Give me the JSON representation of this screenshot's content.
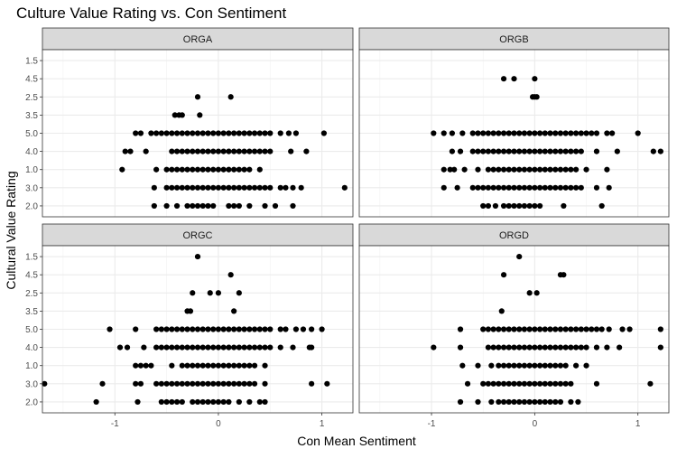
{
  "chart_data": {
    "type": "scatter",
    "title": "Culture Value Rating vs. Con Sentiment",
    "xlabel": "Con Mean Sentiment",
    "ylabel": "Cultural Value Rating",
    "xlim": [
      -1.7,
      1.3
    ],
    "x_ticks": [
      -1,
      0,
      1
    ],
    "y_categories": [
      "1.5",
      "4.5",
      "2.5",
      "3.5",
      "5.0",
      "4.0",
      "1.0",
      "3.0",
      "2.0"
    ],
    "grid": true,
    "point_color": "#000000",
    "strip_color": "#d9d9d9",
    "panels": [
      {
        "name": "ORGA",
        "points": {
          "2.5": [
            -0.2,
            0.12
          ],
          "3.5": [
            -0.42,
            -0.38,
            -0.35,
            -0.18
          ],
          "5.0": [
            -0.8,
            -0.75,
            -0.65,
            -0.6,
            -0.55,
            -0.5,
            -0.45,
            -0.4,
            -0.35,
            -0.3,
            -0.25,
            -0.2,
            -0.15,
            -0.1,
            -0.05,
            0.0,
            0.05,
            0.1,
            0.15,
            0.2,
            0.25,
            0.3,
            0.35,
            0.4,
            0.45,
            0.5,
            0.6,
            0.68,
            0.75,
            1.02
          ],
          "4.0": [
            -0.9,
            -0.85,
            -0.7,
            -0.45,
            -0.4,
            -0.35,
            -0.3,
            -0.25,
            -0.2,
            -0.15,
            -0.1,
            -0.05,
            0.0,
            0.05,
            0.1,
            0.15,
            0.2,
            0.25,
            0.3,
            0.35,
            0.4,
            0.45,
            0.5,
            0.7,
            0.85
          ],
          "1.0": [
            -0.93,
            -0.6,
            -0.5,
            -0.45,
            -0.4,
            -0.35,
            -0.3,
            -0.25,
            -0.2,
            -0.15,
            -0.1,
            -0.05,
            0.0,
            0.05,
            0.1,
            0.15,
            0.2,
            0.25,
            0.3,
            0.4
          ],
          "3.0": [
            -0.62,
            -0.5,
            -0.45,
            -0.4,
            -0.35,
            -0.3,
            -0.25,
            -0.2,
            -0.15,
            -0.1,
            -0.05,
            0.0,
            0.05,
            0.1,
            0.15,
            0.2,
            0.25,
            0.3,
            0.35,
            0.4,
            0.45,
            0.5,
            0.6,
            0.65,
            0.72,
            0.8,
            1.22
          ],
          "2.0": [
            -0.62,
            -0.5,
            -0.4,
            -0.3,
            -0.25,
            -0.2,
            -0.15,
            -0.1,
            -0.05,
            0.1,
            0.15,
            0.2,
            0.3,
            0.45,
            0.55,
            0.72
          ]
        }
      },
      {
        "name": "ORGB",
        "points": {
          "4.5": [
            -0.3,
            -0.2,
            0.0
          ],
          "2.5": [
            -0.02,
            0.0,
            0.02
          ],
          "5.0": [
            -0.98,
            -0.88,
            -0.8,
            -0.7,
            -0.6,
            -0.55,
            -0.5,
            -0.45,
            -0.4,
            -0.35,
            -0.3,
            -0.25,
            -0.2,
            -0.15,
            -0.1,
            -0.05,
            0.0,
            0.05,
            0.1,
            0.15,
            0.2,
            0.25,
            0.3,
            0.35,
            0.4,
            0.45,
            0.5,
            0.55,
            0.6,
            0.7,
            0.75,
            1.0
          ],
          "4.0": [
            -0.8,
            -0.72,
            -0.6,
            -0.55,
            -0.5,
            -0.45,
            -0.4,
            -0.35,
            -0.3,
            -0.25,
            -0.2,
            -0.15,
            -0.1,
            -0.05,
            0.0,
            0.05,
            0.1,
            0.15,
            0.2,
            0.25,
            0.3,
            0.35,
            0.4,
            0.45,
            0.6,
            0.8,
            1.15,
            1.22
          ],
          "1.0": [
            -0.88,
            -0.82,
            -0.78,
            -0.68,
            -0.55,
            -0.45,
            -0.4,
            -0.35,
            -0.3,
            -0.25,
            -0.2,
            -0.15,
            -0.1,
            -0.05,
            0.0,
            0.05,
            0.1,
            0.15,
            0.2,
            0.25,
            0.3,
            0.35,
            0.4,
            0.5,
            0.7
          ],
          "3.0": [
            -0.88,
            -0.75,
            -0.6,
            -0.55,
            -0.5,
            -0.45,
            -0.4,
            -0.35,
            -0.3,
            -0.25,
            -0.2,
            -0.15,
            -0.1,
            -0.05,
            0.0,
            0.05,
            0.1,
            0.15,
            0.2,
            0.25,
            0.3,
            0.35,
            0.4,
            0.45,
            0.6,
            0.72
          ],
          "2.0": [
            -0.5,
            -0.45,
            -0.38,
            -0.3,
            -0.25,
            -0.2,
            -0.15,
            -0.1,
            -0.05,
            0.0,
            0.05,
            0.28,
            0.65
          ]
        }
      },
      {
        "name": "ORGC",
        "points": {
          "1.5": [
            -0.2
          ],
          "4.5": [
            0.12
          ],
          "2.5": [
            -0.25,
            -0.08,
            0.0,
            0.2
          ],
          "3.5": [
            -0.3,
            -0.27,
            0.15
          ],
          "5.0": [
            -1.05,
            -0.8,
            -0.6,
            -0.55,
            -0.5,
            -0.45,
            -0.4,
            -0.35,
            -0.3,
            -0.25,
            -0.2,
            -0.15,
            -0.1,
            -0.05,
            0.0,
            0.05,
            0.1,
            0.15,
            0.2,
            0.25,
            0.3,
            0.35,
            0.4,
            0.45,
            0.5,
            0.6,
            0.65,
            0.75,
            0.82,
            0.9,
            1.0
          ],
          "4.0": [
            -0.95,
            -0.88,
            -0.72,
            -0.6,
            -0.55,
            -0.5,
            -0.45,
            -0.4,
            -0.35,
            -0.3,
            -0.25,
            -0.2,
            -0.15,
            -0.1,
            -0.05,
            0.0,
            0.05,
            0.1,
            0.15,
            0.2,
            0.25,
            0.3,
            0.35,
            0.4,
            0.45,
            0.5,
            0.6,
            0.72,
            0.88,
            0.9
          ],
          "1.0": [
            -0.8,
            -0.75,
            -0.7,
            -0.65,
            -0.45,
            -0.35,
            -0.3,
            -0.25,
            -0.2,
            -0.15,
            -0.1,
            -0.05,
            0.0,
            0.05,
            0.1,
            0.15,
            0.2,
            0.25,
            0.3,
            0.35,
            0.45
          ],
          "3.0": [
            -1.68,
            -1.12,
            -0.8,
            -0.75,
            -0.6,
            -0.55,
            -0.5,
            -0.45,
            -0.4,
            -0.35,
            -0.3,
            -0.25,
            -0.2,
            -0.15,
            -0.1,
            -0.05,
            0.0,
            0.05,
            0.1,
            0.15,
            0.2,
            0.25,
            0.3,
            0.35,
            0.45,
            0.9,
            1.05
          ],
          "2.0": [
            -1.18,
            -0.78,
            -0.55,
            -0.5,
            -0.45,
            -0.4,
            -0.35,
            -0.25,
            -0.2,
            -0.15,
            -0.1,
            -0.05,
            0.0,
            0.05,
            0.1,
            0.2,
            0.3,
            0.4,
            0.45
          ]
        }
      },
      {
        "name": "ORGD",
        "points": {
          "1.5": [
            -0.15
          ],
          "4.5": [
            -0.3,
            0.25,
            0.28
          ],
          "2.5": [
            -0.05,
            0.02
          ],
          "3.5": [
            -0.32
          ],
          "5.0": [
            -0.72,
            -0.5,
            -0.45,
            -0.4,
            -0.35,
            -0.3,
            -0.25,
            -0.2,
            -0.15,
            -0.1,
            -0.05,
            0.0,
            0.05,
            0.1,
            0.15,
            0.2,
            0.25,
            0.3,
            0.35,
            0.4,
            0.45,
            0.5,
            0.55,
            0.6,
            0.65,
            0.72,
            0.85,
            0.92,
            1.22
          ],
          "4.0": [
            -0.98,
            -0.72,
            -0.45,
            -0.4,
            -0.35,
            -0.3,
            -0.25,
            -0.2,
            -0.15,
            -0.1,
            -0.05,
            0.0,
            0.05,
            0.1,
            0.15,
            0.2,
            0.25,
            0.3,
            0.35,
            0.4,
            0.45,
            0.5,
            0.6,
            0.7,
            0.82,
            1.22
          ],
          "1.0": [
            -0.7,
            -0.55,
            -0.42,
            -0.35,
            -0.3,
            -0.25,
            -0.2,
            -0.15,
            -0.1,
            -0.05,
            0.0,
            0.05,
            0.1,
            0.15,
            0.2,
            0.25,
            0.3,
            0.4,
            0.5
          ],
          "3.0": [
            -0.65,
            -0.5,
            -0.45,
            -0.4,
            -0.35,
            -0.3,
            -0.25,
            -0.2,
            -0.15,
            -0.1,
            -0.05,
            0.0,
            0.05,
            0.1,
            0.15,
            0.2,
            0.25,
            0.3,
            0.35,
            0.6,
            1.12
          ],
          "2.0": [
            -0.72,
            -0.55,
            -0.42,
            -0.35,
            -0.3,
            -0.25,
            -0.2,
            -0.15,
            -0.1,
            -0.05,
            0.0,
            0.05,
            0.1,
            0.15,
            0.2,
            0.25,
            0.35,
            0.42
          ]
        }
      }
    ]
  }
}
